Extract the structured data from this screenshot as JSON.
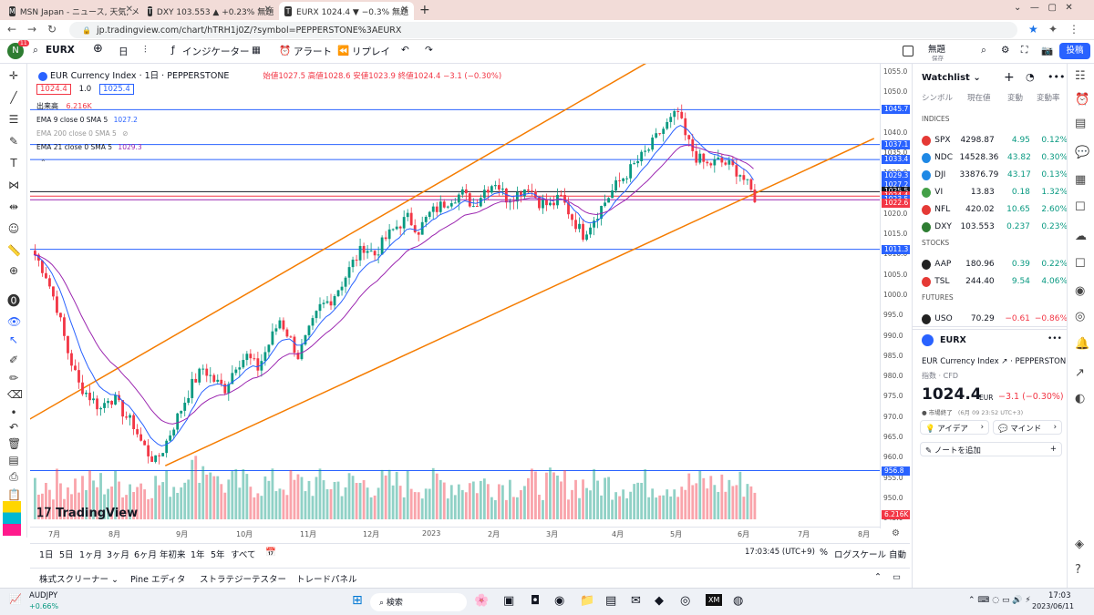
{
  "tabs": [
    {
      "label": "MSN Japan - ニュース, 天気, メール",
      "icon": "msn-icon"
    },
    {
      "label": "DXY 103.553 ▲ +0.23% 無題",
      "icon": "tradingview-icon"
    },
    {
      "label": "EURX 1024.4 ▼ −0.3% 無題",
      "icon": "tradingview-icon"
    }
  ],
  "url": "jp.tradingview.com/chart/hTRH1j0Z/?symbol=PEPPERSTONE%3AEURX",
  "toolbar": {
    "symbol": "EURX",
    "interval": "日",
    "indicators": "インジケーター",
    "alert": "アラート",
    "replay": "リプレイ",
    "layout_name": "無題",
    "layout_sub": "保存",
    "publish": "投稿",
    "badge": "11"
  },
  "legend": {
    "title": "EUR Currency Index · 1日 · PEPPERSTONE",
    "ohlc": "始値1027.5 高値1028.6 安値1023.9 終値1024.4 −3.1 (−0.30%)",
    "bid": "1024.4",
    "spread": "1.0",
    "ask": "1025.4",
    "volume_label": "出来高",
    "volume_value": "6.216K",
    "ema9": "EMA 9 close 0 SMA 5",
    "ema9_val": "1027.2",
    "ema200": "EMA 200 close 0 SMA 5",
    "ema21": "EMA 21 close 0 SMA 5",
    "ema21_val": "1029.3"
  },
  "price_ticks": [
    "1055.0",
    "1050.0",
    "1045.0",
    "1040.0",
    "1035.0",
    "1030.0",
    "1025.0",
    "1020.0",
    "1015.0",
    "1010.0",
    "1005.0",
    "1000.0",
    "995.0",
    "990.0",
    "985.0",
    "980.0",
    "975.0",
    "970.0",
    "965.0",
    "960.0",
    "955.0",
    "950.0",
    "945.0"
  ],
  "price_labels": [
    {
      "v": "1045.7",
      "c": "#2962ff"
    },
    {
      "v": "1037.1",
      "c": "#2962ff"
    },
    {
      "v": "1033.4",
      "c": "#2962ff"
    },
    {
      "v": "1029.3",
      "c": "#2962ff"
    },
    {
      "v": "1027.2",
      "c": "#2962ff"
    },
    {
      "v": "1025.5",
      "c": "#131722"
    },
    {
      "v": "1024.4",
      "c": "#f23645"
    },
    {
      "v": "1023.5",
      "c": "#2962ff"
    },
    {
      "v": "1022.6",
      "c": "#f23645"
    },
    {
      "v": "1011.3",
      "c": "#2962ff"
    },
    {
      "v": "956.8",
      "c": "#2962ff"
    },
    {
      "v": "6.216K",
      "c": "#f23645"
    }
  ],
  "time_ticks": [
    "7月",
    "8月",
    "9月",
    "10月",
    "11月",
    "12月",
    "2023",
    "2月",
    "3月",
    "4月",
    "5月",
    "6月",
    "7月",
    "8月"
  ],
  "ranges": [
    "1日",
    "5日",
    "1ヶ月",
    "3ヶ月",
    "6ヶ月",
    "年初来",
    "1年",
    "5年",
    "すべて"
  ],
  "clock": "17:03:45 (UTC+9)",
  "pct": "%",
  "logscale": "ログスケール",
  "auto": "自動",
  "bottom_tabs": [
    "株式スクリーナー",
    "Pine エディタ",
    "ストラテジーテスター",
    "トレードパネル"
  ],
  "watermark": "TradingView",
  "watchlist": {
    "title": "Watchlist",
    "cols": [
      "シンボル",
      "現在値",
      "変動",
      "変動率"
    ],
    "sections": [
      {
        "name": "INDICES",
        "rows": [
          {
            "s": "SPX",
            "l": "4298.87",
            "c": "4.95",
            "p": "0.12%",
            "col": "#e53935",
            "up": true
          },
          {
            "s": "NDC",
            "l": "14528.36",
            "c": "43.82",
            "p": "0.30%",
            "col": "#1e88e5",
            "up": true
          },
          {
            "s": "DJI",
            "l": "33876.79",
            "c": "43.17",
            "p": "0.13%",
            "col": "#1e88e5",
            "up": true
          },
          {
            "s": "VI",
            "l": "13.83",
            "c": "0.18",
            "p": "1.32%",
            "col": "#43a047",
            "up": true
          },
          {
            "s": "NFL",
            "l": "420.02",
            "c": "10.65",
            "p": "2.60%",
            "col": "#e53935",
            "up": true
          },
          {
            "s": "DXY",
            "l": "103.553",
            "c": "0.237",
            "p": "0.23%",
            "col": "#2e7d32",
            "up": true
          }
        ]
      },
      {
        "name": "STOCKS",
        "rows": [
          {
            "s": "AAP",
            "l": "180.96",
            "c": "0.39",
            "p": "0.22%",
            "col": "#222",
            "up": true
          },
          {
            "s": "TSL",
            "l": "244.40",
            "c": "9.54",
            "p": "4.06%",
            "col": "#e53935",
            "up": true
          }
        ]
      },
      {
        "name": "FUTURES",
        "rows": [
          {
            "s": "USO",
            "l": "70.29",
            "c": "−0.61",
            "p": "−0.86%",
            "col": "#222",
            "up": false
          }
        ]
      }
    ]
  },
  "detail": {
    "symbol": "EURX",
    "name": "EUR Currency Index",
    "exchange": "PEPPERSTONE",
    "type": "指数 · CFD",
    "price": "1024.4",
    "currency": "EUR",
    "change": "−3.1 (−0.30%)",
    "status": "市場終了",
    "time": "(6月 09 23:52 UTC+3)",
    "ideas": "アイデア",
    "minds": "マインド",
    "notes": "ノートを追加"
  },
  "taskbar": {
    "ticker": "AUDJPY",
    "ticker_chg": "+0.66%",
    "search": "検索",
    "time": "17:03",
    "date": "2023/06/11"
  },
  "chart_data": {
    "type": "candlestick",
    "title": "EUR Currency Index · 1日 · PEPPERSTONE",
    "ylim": [
      943,
      1057
    ],
    "x_range": [
      "2022-06-25",
      "2023-08-05"
    ],
    "close_path": [
      [
        0,
        1010
      ],
      [
        3,
        1005
      ],
      [
        6,
        997
      ],
      [
        9,
        986
      ],
      [
        12,
        978
      ],
      [
        15,
        975
      ],
      [
        18,
        972
      ],
      [
        20,
        975
      ],
      [
        22,
        974
      ],
      [
        25,
        970
      ],
      [
        27,
        968
      ],
      [
        29,
        964
      ],
      [
        31,
        961
      ],
      [
        33,
        959
      ],
      [
        35,
        962
      ],
      [
        37,
        966
      ],
      [
        40,
        972
      ],
      [
        43,
        978
      ],
      [
        46,
        982
      ],
      [
        49,
        979
      ],
      [
        52,
        977
      ],
      [
        55,
        983
      ],
      [
        58,
        985
      ],
      [
        61,
        982
      ],
      [
        64,
        988
      ],
      [
        67,
        994
      ],
      [
        70,
        989
      ],
      [
        72,
        985
      ],
      [
        75,
        991
      ],
      [
        78,
        997
      ],
      [
        81,
        999
      ],
      [
        84,
        1003
      ],
      [
        87,
        1008
      ],
      [
        90,
        1012
      ],
      [
        93,
        1010
      ],
      [
        96,
        1014
      ],
      [
        99,
        1017
      ],
      [
        102,
        1019
      ],
      [
        105,
        1016
      ],
      [
        108,
        1020
      ],
      [
        111,
        1022
      ],
      [
        114,
        1024
      ],
      [
        117,
        1025
      ],
      [
        120,
        1022
      ],
      [
        123,
        1026
      ],
      [
        126,
        1028
      ],
      [
        129,
        1024
      ],
      [
        132,
        1025
      ],
      [
        135,
        1027
      ],
      [
        138,
        1023
      ],
      [
        141,
        1022
      ],
      [
        144,
        1024
      ],
      [
        147,
        1019
      ],
      [
        150,
        1015
      ],
      [
        153,
        1019
      ],
      [
        156,
        1023
      ],
      [
        159,
        1027
      ],
      [
        162,
        1030
      ],
      [
        165,
        1033
      ],
      [
        168,
        1036
      ],
      [
        171,
        1040
      ],
      [
        174,
        1043
      ],
      [
        176,
        1045
      ],
      [
        178,
        1039
      ],
      [
        181,
        1034
      ],
      [
        184,
        1032
      ],
      [
        187,
        1033
      ],
      [
        190,
        1032
      ],
      [
        193,
        1030
      ],
      [
        195,
        1027
      ],
      [
        197,
        1024
      ]
    ],
    "levels": [
      1045.7,
      1037.1,
      1033.4,
      1025.5,
      1024.4,
      1023.5,
      1011.3,
      956.8
    ],
    "channel": {
      "upper": [
        [
          0,
          958
        ],
        [
          180,
          1044
        ]
      ],
      "lower": [
        [
          0,
          957
        ],
        [
          190,
          1024
        ]
      ]
    },
    "ema9_last": 1027.2,
    "ema21_last": 1029.3,
    "volume_last": "6.216K"
  }
}
